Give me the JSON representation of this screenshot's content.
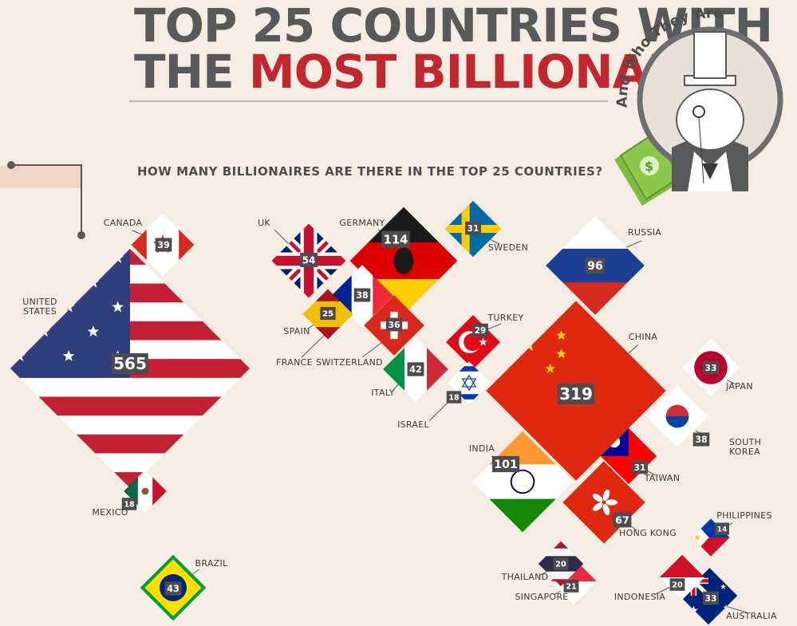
{
  "header": {
    "title_line1": "TOP 25 COUNTRIES WITH",
    "title_line2_prefix": "THE ",
    "title_line2_highlight": "MOST BILLIONAIRES",
    "tagline": "And Who They Are"
  },
  "colors": {
    "accent_red": "#c1272d",
    "title_gray": "#58595b",
    "background": "#f3ede4"
  },
  "chart_data": {
    "type": "bubble-map",
    "title": "HOW MANY BILLIONAIRES ARE THERE IN THE TOP 25 COUNTRIES?",
    "unit": "billionaires",
    "countries": [
      {
        "name": "UNITED STATES",
        "label_lines": [
          "UNITED",
          "STATES"
        ],
        "value": 565,
        "flag": "us"
      },
      {
        "name": "CHINA",
        "value": 319,
        "flag": "cn"
      },
      {
        "name": "GERMANY",
        "value": 114,
        "flag": "de"
      },
      {
        "name": "INDIA",
        "value": 101,
        "flag": "in"
      },
      {
        "name": "RUSSIA",
        "value": 96,
        "flag": "ru"
      },
      {
        "name": "HONG KONG",
        "value": 67,
        "flag": "hk"
      },
      {
        "name": "UK",
        "value": 54,
        "flag": "uk"
      },
      {
        "name": "BRAZIL",
        "value": 43,
        "flag": "br"
      },
      {
        "name": "ITALY",
        "value": 42,
        "flag": "it"
      },
      {
        "name": "CANADA",
        "value": 39,
        "flag": "ca"
      },
      {
        "name": "SOUTH KOREA",
        "label_lines": [
          "SOUTH",
          "KOREA"
        ],
        "value": 38,
        "flag": "kr"
      },
      {
        "name": "FRANCE",
        "value": 38,
        "flag": "fr"
      },
      {
        "name": "SWITZERLAND",
        "value": 36,
        "flag": "ch"
      },
      {
        "name": "JAPAN",
        "value": 33,
        "flag": "jp"
      },
      {
        "name": "AUSTRALIA",
        "value": 33,
        "flag": "au"
      },
      {
        "name": "SWEDEN",
        "value": 31,
        "flag": "se"
      },
      {
        "name": "TAIWAN",
        "value": 31,
        "flag": "tw"
      },
      {
        "name": "TURKEY",
        "value": 29,
        "flag": "tr"
      },
      {
        "name": "SPAIN",
        "value": 25,
        "flag": "es"
      },
      {
        "name": "SINGAPORE",
        "value": 21,
        "flag": "sg"
      },
      {
        "name": "THAILAND",
        "value": 20,
        "flag": "th"
      },
      {
        "name": "INDONESIA",
        "value": 20,
        "flag": "id"
      },
      {
        "name": "ISRAEL",
        "value": 18,
        "flag": "il"
      },
      {
        "name": "MEXICO",
        "value": 18,
        "flag": "mx"
      },
      {
        "name": "PHILIPPINES",
        "value": 14,
        "flag": "ph"
      }
    ]
  }
}
